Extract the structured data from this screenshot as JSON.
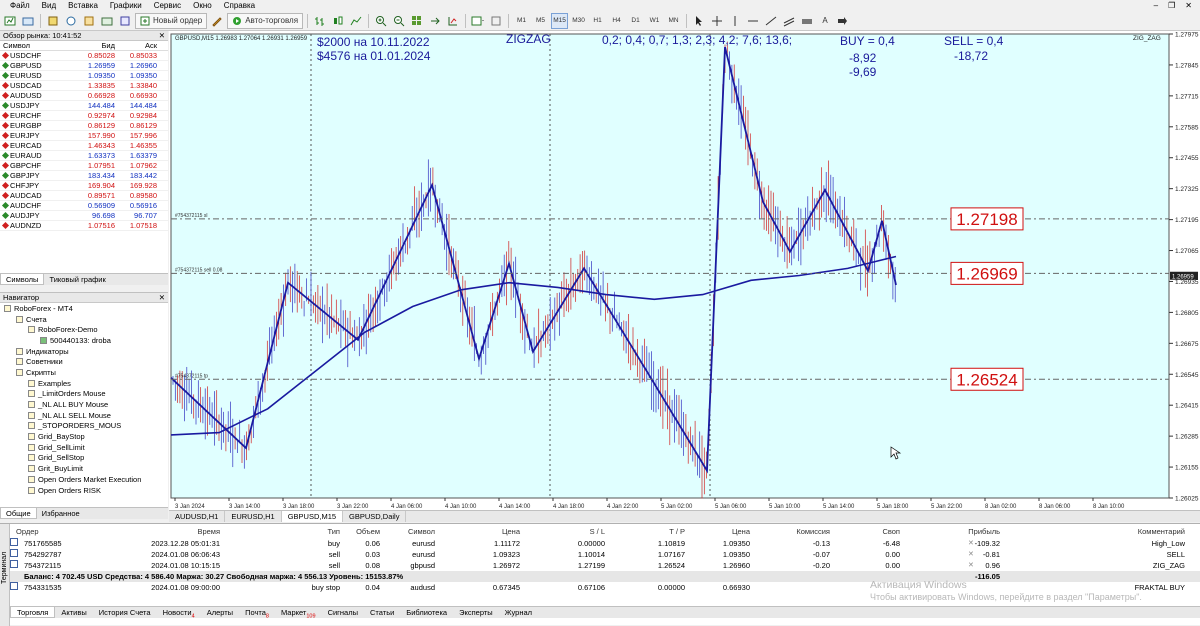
{
  "menu": {
    "items": [
      "Файл",
      "Вид",
      "Вставка",
      "Графики",
      "Сервис",
      "Окно",
      "Справка"
    ]
  },
  "toolbar": {
    "new_order": "Новый ордер",
    "auto_trading": "Авто-торговля",
    "timeframes": [
      "M1",
      "M5",
      "M15",
      "M30",
      "H1",
      "H4",
      "D1",
      "W1",
      "MN"
    ],
    "active_timeframe": "M15",
    "text_tool": "A"
  },
  "market_watch": {
    "title": "Обзор рынка: 10:41:52",
    "columns": [
      "Символ",
      "Бид",
      "Аск"
    ],
    "rows": [
      {
        "symbol": "USDCHF",
        "bid": "0.85028",
        "ask": "0.85033",
        "bid_color": "red"
      },
      {
        "symbol": "GBPUSD",
        "bid": "1.26959",
        "ask": "1.26960",
        "bid_color": "blue"
      },
      {
        "symbol": "EURUSD",
        "bid": "1.09350",
        "ask": "1.09350",
        "bid_color": "blue"
      },
      {
        "symbol": "USDCAD",
        "bid": "1.33835",
        "ask": "1.33840",
        "bid_color": "red"
      },
      {
        "symbol": "AUDUSD",
        "bid": "0.66928",
        "ask": "0.66930",
        "bid_color": "red"
      },
      {
        "symbol": "USDJPY",
        "bid": "144.484",
        "ask": "144.484",
        "bid_color": "blue"
      },
      {
        "symbol": "EURCHF",
        "bid": "0.92974",
        "ask": "0.92984",
        "bid_color": "red"
      },
      {
        "symbol": "EURGBP",
        "bid": "0.86129",
        "ask": "0.86129",
        "bid_color": "red"
      },
      {
        "symbol": "EURJPY",
        "bid": "157.990",
        "ask": "157.996",
        "bid_color": "red"
      },
      {
        "symbol": "EURCAD",
        "bid": "1.46343",
        "ask": "1.46355",
        "bid_color": "red"
      },
      {
        "symbol": "EURAUD",
        "bid": "1.63373",
        "ask": "1.63379",
        "bid_color": "blue"
      },
      {
        "symbol": "GBPCHF",
        "bid": "1.07951",
        "ask": "1.07962",
        "bid_color": "red"
      },
      {
        "symbol": "GBPJPY",
        "bid": "183.434",
        "ask": "183.442",
        "bid_color": "blue"
      },
      {
        "symbol": "CHFJPY",
        "bid": "169.904",
        "ask": "169.928",
        "bid_color": "red"
      },
      {
        "symbol": "AUDCAD",
        "bid": "0.89571",
        "ask": "0.89580",
        "bid_color": "red"
      },
      {
        "symbol": "AUDCHF",
        "bid": "0.56909",
        "ask": "0.56916",
        "bid_color": "blue"
      },
      {
        "symbol": "AUDJPY",
        "bid": "96.698",
        "ask": "96.707",
        "bid_color": "blue"
      },
      {
        "symbol": "AUDNZD",
        "bid": "1.07516",
        "ask": "1.07518",
        "bid_color": "red"
      }
    ],
    "tabs": [
      "Символы",
      "Тиковый график"
    ]
  },
  "navigator": {
    "title": "Навигатор",
    "items": [
      {
        "label": "RoboForex - MT4",
        "level": 0
      },
      {
        "label": "Счета",
        "level": 1
      },
      {
        "label": "RoboForex-Demo",
        "level": 2
      },
      {
        "label": "500440133: droba",
        "level": 3
      },
      {
        "label": "Индикаторы",
        "level": 1
      },
      {
        "label": "Советники",
        "level": 1
      },
      {
        "label": "Скрипты",
        "level": 1
      },
      {
        "label": "Examples",
        "level": 2
      },
      {
        "label": "_LimitOrders Mouse",
        "level": 2
      },
      {
        "label": "_NL ALL BUY Mouse",
        "level": 2
      },
      {
        "label": "_NL ALL SELL Mouse",
        "level": 2
      },
      {
        "label": "_STOPORDERS_MOUS",
        "level": 2
      },
      {
        "label": "Grid_BayStop",
        "level": 2
      },
      {
        "label": "Grid_SellLimit",
        "level": 2
      },
      {
        "label": "Grid_SellStop",
        "level": 2
      },
      {
        "label": "Grit_BuyLimit",
        "level": 2
      },
      {
        "label": "Open Orders Market Execution",
        "level": 2
      },
      {
        "label": "Open Orders RISK",
        "level": 2
      }
    ],
    "tabs": [
      "Общие",
      "Избранное"
    ]
  },
  "chart": {
    "symbol_info": "GBPUSD,M15  1.26983 1.27064 1.26931 1.26959",
    "indicator_label": "ZIG_ZAG",
    "annotations": {
      "line1": "$2000 на 10.11.2022",
      "line2": "$4576 на 01.01.2024",
      "zigzag": "ZIGZAG",
      "zigzag_params": "0,2; 0,4; 0,7; 1,3; 2,3; 4,2; 7,6; 13,6;",
      "buy": "BUY = 0,4",
      "buy_v1": "-8,92",
      "buy_v2": "-9,69",
      "sell": "SELL = 0,4",
      "sell_v1": "-18,72"
    },
    "order_lines": [
      {
        "label": "#754372115 sl",
        "price": 1.27198,
        "box": "1.27198"
      },
      {
        "label": "#754372115 sell 0.08",
        "price": 1.26969,
        "box": "1.26969"
      },
      {
        "label": "#754372115 tp",
        "price": 1.26524,
        "box": "1.26524"
      }
    ],
    "y_ticks": [
      "1.27975",
      "1.27845",
      "1.27715",
      "1.27585",
      "1.27455",
      "1.27325",
      "1.27195",
      "1.27065",
      "1.26935",
      "1.26805",
      "1.26675",
      "1.26545",
      "1.26415",
      "1.26285",
      "1.26155",
      "1.26025"
    ],
    "current_price": "1.26959",
    "x_ticks": [
      "3 Jan 2024",
      "3 Jan 14:00",
      "3 Jan 18:00",
      "3 Jan 22:00",
      "4 Jan 06:00",
      "4 Jan 10:00",
      "4 Jan 14:00",
      "4 Jan 18:00",
      "4 Jan 22:00",
      "5 Jan 02:00",
      "5 Jan 06:00",
      "5 Jan 10:00",
      "5 Jan 14:00",
      "5 Jan 18:00",
      "5 Jan 22:00",
      "8 Jan 02:00",
      "8 Jan 06:00",
      "8 Jan 10:00"
    ],
    "tabs": [
      "AUDUSD,H1",
      "EURUSD,H1",
      "GBPUSD,M15",
      "GBPUSD,Daily"
    ],
    "active_tab": "GBPUSD,M15"
  },
  "chart_data": {
    "type": "line",
    "title": "GBPUSD,M15",
    "ylim": [
      1.26025,
      1.27975
    ],
    "zigzag": [
      1.2653,
      1.26235,
      1.2693,
      1.2669,
      1.2734,
      1.2661,
      1.2701,
      1.2664,
      1.2699,
      1.2657,
      1.2614,
      1.2792,
      1.2727,
      1.2706,
      1.2732,
      1.2698,
      1.2719,
      1.2692
    ],
    "moving_average": [
      1.2629,
      1.263,
      1.264,
      1.2656,
      1.2672,
      1.2683,
      1.269,
      1.2693,
      1.2691,
      1.2688,
      1.2686,
      1.2688,
      1.2694,
      1.2696,
      1.2699,
      1.2704
    ]
  },
  "terminal": {
    "side_label": "Терминал",
    "headers": [
      "Ордер",
      "Время",
      "Тип",
      "Объем",
      "Символ",
      "Цена",
      "S / L",
      "T / P",
      "Цена",
      "Комиссия",
      "Своп",
      "Прибыль",
      "Комментарий"
    ],
    "rows": [
      [
        "751765585",
        "2023.12.28 05:01:31",
        "buy",
        "0.06",
        "eurusd",
        "1.11172",
        "0.00000",
        "1.10819",
        "1.09350",
        "-0.13",
        "-6.48",
        "-109.32",
        "High_Low"
      ],
      [
        "754292787",
        "2024.01.08 06:06:43",
        "sell",
        "0.03",
        "eurusd",
        "1.09323",
        "1.10014",
        "1.07167",
        "1.09350",
        "-0.07",
        "0.00",
        "-0.81",
        "SELL"
      ],
      [
        "754372115",
        "2024.01.08 10:15:15",
        "sell",
        "0.08",
        "gbpusd",
        "1.26972",
        "1.27199",
        "1.26524",
        "1.26960",
        "-0.20",
        "0.00",
        "0.96",
        "ZIG_ZAG"
      ]
    ],
    "balance_line": "Баланс: 4 702.45 USD  Средства: 4 586.40  Маржа: 30.27  Свободная маржа: 4 556.13  Уровень: 15153.87%",
    "balance_total": "-116.05",
    "pending": [
      "754331535",
      "2024.01.08 09:00:00",
      "buy stop",
      "0.04",
      "audusd",
      "0.67345",
      "0.67106",
      "0.00000",
      "0.66930",
      "",
      "",
      "",
      "FRAKTAL BUY"
    ],
    "tabs": [
      {
        "label": "Торговля",
        "badge": ""
      },
      {
        "label": "Активы",
        "badge": ""
      },
      {
        "label": "История Счета",
        "badge": ""
      },
      {
        "label": "Новости",
        "badge": "4"
      },
      {
        "label": "Алерты",
        "badge": ""
      },
      {
        "label": "Почта",
        "badge": "8"
      },
      {
        "label": "Маркет",
        "badge": "109"
      },
      {
        "label": "Сигналы",
        "badge": ""
      },
      {
        "label": "Статьи",
        "badge": ""
      },
      {
        "label": "Библиотека",
        "badge": ""
      },
      {
        "label": "Эксперты",
        "badge": ""
      },
      {
        "label": "Журнал",
        "badge": ""
      }
    ]
  },
  "activation": {
    "title": "Активация Windows",
    "text": "Чтобы активировать Windows, перейдите в раздел \"Параметры\"."
  },
  "colors": {
    "chart_bg": "#e0ffff",
    "zigzag": "#1a1aa0",
    "ma": "#1a1aa0",
    "bull": "#3030c0",
    "bear": "#d02020",
    "price_box": "#d01010"
  }
}
